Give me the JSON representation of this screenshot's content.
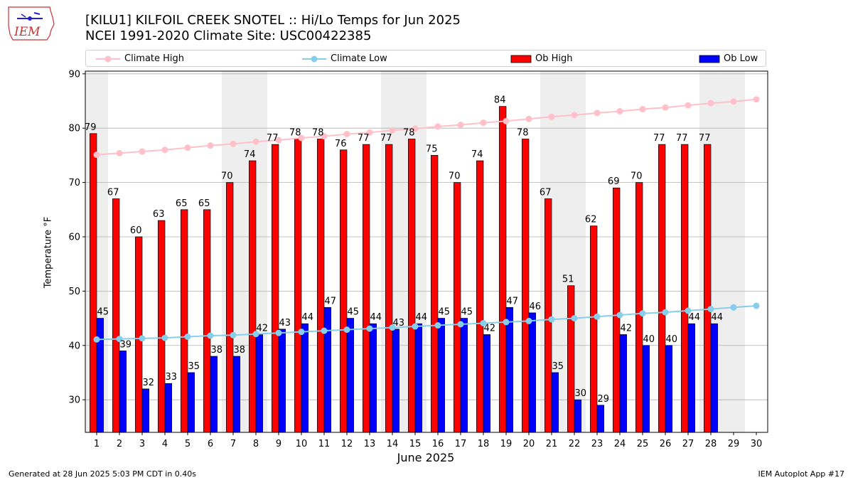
{
  "header": {
    "title_line1": "[KILU1] KILFOIL CREEK SNOTEL :: Hi/Lo Temps for Jun 2025",
    "title_line2": "NCEI 1991-2020 Climate Site: USC00422385",
    "logo_text": "IEM"
  },
  "footer": {
    "generated": "Generated at 28 Jun 2025 5:03 PM CDT in 0.40s",
    "app": "IEM Autoplot App #17"
  },
  "colors": {
    "climate_high": "#FFC0CB",
    "climate_low": "#87CEEB",
    "ob_high": "#FF0000",
    "ob_low": "#0000FF",
    "weekend_shade": "#EEEEEE",
    "grid": "#B0B0B0"
  },
  "chart_data": {
    "type": "bar",
    "xlabel": "June 2025",
    "ylabel": "Temperature °F",
    "ylim": [
      24,
      90.5
    ],
    "yticks": [
      30,
      40,
      50,
      60,
      70,
      80,
      90
    ],
    "grid": "horizontal",
    "legend_placement": "top",
    "categories": [
      "1",
      "2",
      "3",
      "4",
      "5",
      "6",
      "7",
      "8",
      "9",
      "10",
      "11",
      "12",
      "13",
      "14",
      "15",
      "16",
      "17",
      "18",
      "19",
      "20",
      "21",
      "22",
      "23",
      "24",
      "25",
      "26",
      "27",
      "28",
      "29",
      "30"
    ],
    "weekend_days": [
      1,
      7,
      8,
      14,
      15,
      21,
      22,
      28,
      29
    ],
    "series": [
      {
        "name": "Climate High",
        "kind": "line",
        "values": [
          75.1,
          75.4,
          75.7,
          76.0,
          76.4,
          76.8,
          77.1,
          77.5,
          77.8,
          78.2,
          78.5,
          78.9,
          79.2,
          79.6,
          79.9,
          80.3,
          80.6,
          81.0,
          81.3,
          81.7,
          82.1,
          82.4,
          82.8,
          83.1,
          83.5,
          83.8,
          84.2,
          84.6,
          84.9,
          85.3
        ]
      },
      {
        "name": "Climate Low",
        "kind": "line",
        "values": [
          41.1,
          41.2,
          41.3,
          41.4,
          41.6,
          41.8,
          41.9,
          42.1,
          42.3,
          42.5,
          42.7,
          42.9,
          43.1,
          43.3,
          43.5,
          43.7,
          43.9,
          44.1,
          44.3,
          44.5,
          44.8,
          45.0,
          45.3,
          45.6,
          45.9,
          46.1,
          46.4,
          46.7,
          47.0,
          47.3
        ]
      },
      {
        "name": "Ob High",
        "kind": "bar",
        "values": [
          79,
          67,
          60,
          63,
          65,
          65,
          70,
          74,
          77,
          78,
          78,
          76,
          77,
          77,
          78,
          75,
          70,
          74,
          84,
          78,
          67,
          51,
          62,
          69,
          70,
          77,
          77,
          77,
          null,
          null
        ]
      },
      {
        "name": "Ob Low",
        "kind": "bar",
        "values": [
          45,
          39,
          32,
          33,
          35,
          38,
          38,
          42,
          43,
          44,
          47,
          45,
          44,
          43,
          44,
          45,
          45,
          42,
          47,
          46,
          35,
          30,
          29,
          42,
          40,
          40,
          44,
          44,
          null,
          null
        ]
      }
    ]
  }
}
